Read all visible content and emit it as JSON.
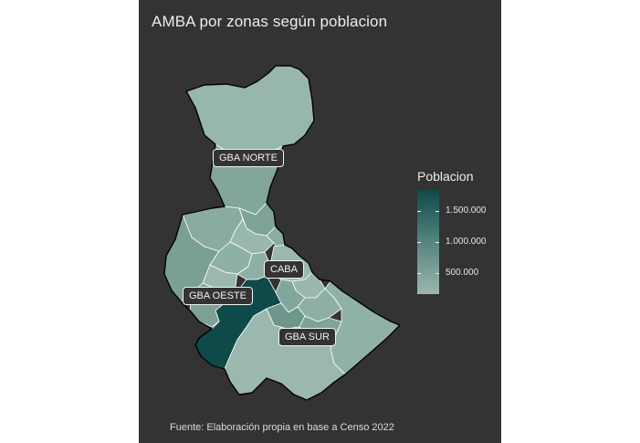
{
  "title": "AMBA por zonas según poblacion",
  "caption": "Fuente: Elaboración propia en base a Censo 2022",
  "colors": {
    "panel_background": "#333333",
    "border": "#ffffff",
    "low": "#9ab8ae",
    "mid": "#4e7f79",
    "high": "#0f4a4a"
  },
  "zones": {
    "gba_norte": "GBA NORTE",
    "caba": "CABA",
    "gba_oeste": "GBA OESTE",
    "gba_sur": "GBA SUR"
  },
  "legend": {
    "title": "Poblacion",
    "ticks": [
      {
        "label": "1.500.000",
        "value": 1500000
      },
      {
        "label": "1.000.000",
        "value": 1000000
      },
      {
        "label": "500.000",
        "value": 500000
      }
    ]
  }
}
